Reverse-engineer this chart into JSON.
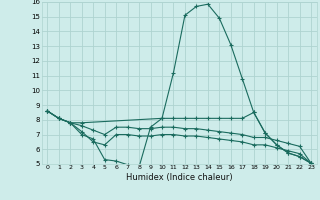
{
  "xlabel": "Humidex (Indice chaleur)",
  "bg_color": "#ceecea",
  "grid_color": "#aed4d0",
  "line_color": "#1a6b5e",
  "xlim": [
    -0.5,
    23.5
  ],
  "ylim": [
    5,
    16
  ],
  "xticks": [
    0,
    1,
    2,
    3,
    4,
    5,
    6,
    7,
    8,
    9,
    10,
    11,
    12,
    13,
    14,
    15,
    16,
    17,
    18,
    19,
    20,
    21,
    22,
    23
  ],
  "yticks": [
    5,
    6,
    7,
    8,
    9,
    10,
    11,
    12,
    13,
    14,
    15,
    16
  ],
  "line1_x": [
    0,
    1,
    2,
    3,
    4,
    5,
    6,
    7,
    8,
    9,
    10,
    11,
    12,
    13,
    14,
    15,
    16,
    17,
    18,
    19,
    20,
    21,
    22,
    23
  ],
  "line1_y": [
    8.6,
    8.1,
    7.8,
    7.0,
    6.7,
    5.3,
    5.2,
    4.95,
    4.8,
    7.5,
    8.1,
    11.2,
    15.1,
    15.7,
    15.85,
    14.9,
    13.1,
    10.8,
    8.5,
    7.1,
    6.3,
    5.75,
    5.5,
    5.05
  ],
  "line2_x": [
    0,
    1,
    2,
    3,
    10,
    11,
    12,
    13,
    14,
    15,
    16,
    17,
    18,
    19,
    20,
    21,
    22,
    23
  ],
  "line2_y": [
    8.6,
    8.1,
    7.8,
    7.8,
    8.1,
    8.1,
    8.1,
    8.1,
    8.1,
    8.1,
    8.1,
    8.1,
    8.5,
    7.1,
    6.3,
    5.75,
    5.5,
    5.05
  ],
  "line3_x": [
    0,
    1,
    2,
    3,
    4,
    5,
    6,
    7,
    8,
    9,
    10,
    11,
    12,
    13,
    14,
    15,
    16,
    17,
    18,
    19,
    20,
    21,
    22,
    23
  ],
  "line3_y": [
    8.6,
    8.1,
    7.8,
    7.6,
    7.3,
    7.0,
    7.5,
    7.5,
    7.4,
    7.4,
    7.5,
    7.5,
    7.4,
    7.4,
    7.3,
    7.2,
    7.1,
    7.0,
    6.8,
    6.8,
    6.6,
    6.4,
    6.2,
    5.05
  ],
  "line4_x": [
    0,
    1,
    2,
    3,
    4,
    5,
    6,
    7,
    8,
    9,
    10,
    11,
    12,
    13,
    14,
    15,
    16,
    17,
    18,
    19,
    20,
    21,
    22,
    23
  ],
  "line4_y": [
    8.6,
    8.1,
    7.8,
    7.2,
    6.5,
    6.3,
    7.0,
    7.0,
    6.9,
    6.9,
    7.0,
    7.0,
    6.9,
    6.9,
    6.8,
    6.7,
    6.6,
    6.5,
    6.3,
    6.3,
    6.1,
    5.9,
    5.7,
    5.05
  ]
}
